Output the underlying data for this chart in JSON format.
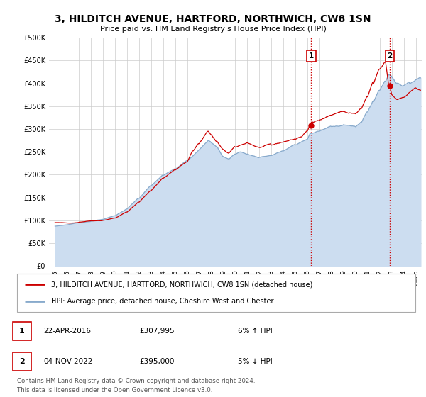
{
  "title": "3, HILDITCH AVENUE, HARTFORD, NORTHWICH, CW8 1SN",
  "subtitle": "Price paid vs. HM Land Registry's House Price Index (HPI)",
  "ylabel_ticks": [
    "£0",
    "£50K",
    "£100K",
    "£150K",
    "£200K",
    "£250K",
    "£300K",
    "£350K",
    "£400K",
    "£450K",
    "£500K"
  ],
  "ytick_values": [
    0,
    50000,
    100000,
    150000,
    200000,
    250000,
    300000,
    350000,
    400000,
    450000,
    500000
  ],
  "ylim": [
    0,
    500000
  ],
  "xlim_start": 1994.5,
  "xlim_end": 2025.5,
  "xtick_years": [
    1995,
    1996,
    1997,
    1998,
    1999,
    2000,
    2001,
    2002,
    2003,
    2004,
    2005,
    2006,
    2007,
    2008,
    2009,
    2010,
    2011,
    2012,
    2013,
    2014,
    2015,
    2016,
    2017,
    2018,
    2019,
    2020,
    2021,
    2022,
    2023,
    2024,
    2025
  ],
  "line1_color": "#cc0000",
  "line2_color": "#88aacc",
  "line2_fill_color": "#ccddf0",
  "vline_color": "#cc0000",
  "marker1_year": 2016.31,
  "marker1_value": 307995,
  "marker2_year": 2022.84,
  "marker2_value": 395000,
  "legend_line1": "3, HILDITCH AVENUE, HARTFORD, NORTHWICH, CW8 1SN (detached house)",
  "legend_line2": "HPI: Average price, detached house, Cheshire West and Chester",
  "annotation1_date": "22-APR-2016",
  "annotation1_price": "£307,995",
  "annotation1_hpi": "6% ↑ HPI",
  "annotation2_date": "04-NOV-2022",
  "annotation2_price": "£395,000",
  "annotation2_hpi": "5% ↓ HPI",
  "footer": "Contains HM Land Registry data © Crown copyright and database right 2024.\nThis data is licensed under the Open Government Licence v3.0.",
  "background_color": "#ffffff",
  "grid_color": "#cccccc"
}
